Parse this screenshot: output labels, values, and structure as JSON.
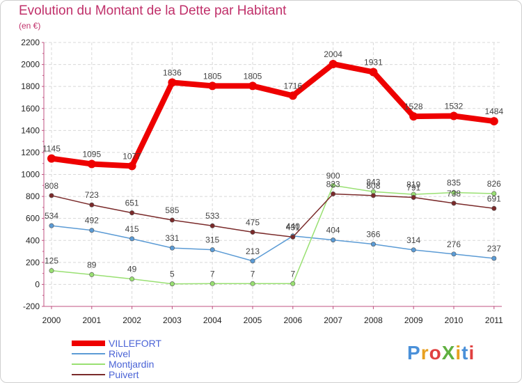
{
  "chart_data": {
    "type": "line",
    "title": "Evolution du Montant de la Dette par Habitant",
    "subtitle": "(en €)",
    "xlabel": "",
    "ylabel": "",
    "x": [
      "2000",
      "2001",
      "2002",
      "2003",
      "2004",
      "2005",
      "2006",
      "2007",
      "2008",
      "2009",
      "2010",
      "2011"
    ],
    "ylim": [
      -200,
      2200
    ],
    "yticks": [
      -200,
      0,
      200,
      400,
      600,
      800,
      1000,
      1200,
      1400,
      1600,
      1800,
      2000,
      2200
    ],
    "grid": true,
    "legend_position": "bottom-left",
    "series": [
      {
        "name": "VILLEFORT",
        "color": "#ee0000",
        "values": [
          1145,
          1095,
          1077,
          1836,
          1805,
          1805,
          1716,
          2004,
          1931,
          1528,
          1532,
          1484
        ]
      },
      {
        "name": "Rivel",
        "color": "#5b9bd5",
        "values": [
          534,
          492,
          415,
          331,
          315,
          213,
          440,
          404,
          366,
          314,
          276,
          237
        ]
      },
      {
        "name": "Montjardin",
        "color": "#99e072",
        "values": [
          125,
          89,
          49,
          5,
          7,
          7,
          7,
          900,
          843,
          819,
          835,
          826
        ]
      },
      {
        "name": "Puivert",
        "color": "#7a2a2a",
        "values": [
          808,
          723,
          651,
          585,
          533,
          475,
          431,
          823,
          808,
          791,
          738,
          691
        ]
      }
    ]
  },
  "branding": {
    "logo_text": "ProXiti",
    "logo_colors": [
      "#4a90d9",
      "#e8a020",
      "#e04040",
      "#60b040",
      "#e8a020",
      "#4a90d9",
      "#e04040"
    ]
  }
}
